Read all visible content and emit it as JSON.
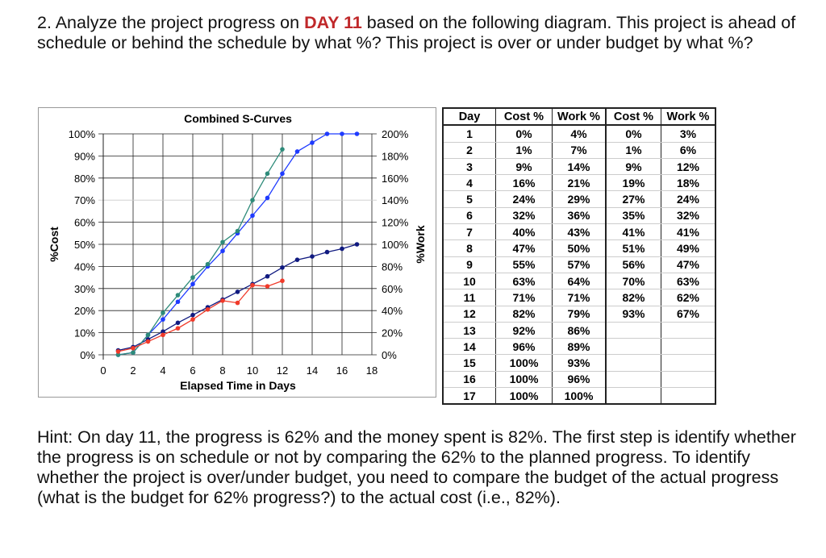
{
  "question": {
    "prefix": "2. Analyze the project progress on ",
    "day": "DAY 11",
    "suffix": " based on the following diagram. This project is ahead of schedule or behind the schedule by what %? This project is over or under budget by what %?"
  },
  "hint": "Hint: On day 11, the progress is 62% and the money spent is 82%. The first step is identify whether the progress is on schedule or not by comparing the 62% to the planned progress. To identify whether the project is over/under budget, you need to compare the budget of the actual progress (what is the budget for 62% progress?) to the actual cost (i.e., 82%).",
  "table": {
    "headers": [
      "Day",
      "Cost %",
      "Work %",
      "Cost %",
      "Work %"
    ],
    "rows": [
      [
        "1",
        "0%",
        "4%",
        "0%",
        "3%"
      ],
      [
        "2",
        "1%",
        "7%",
        "1%",
        "6%"
      ],
      [
        "3",
        "9%",
        "14%",
        "9%",
        "12%"
      ],
      [
        "4",
        "16%",
        "21%",
        "19%",
        "18%"
      ],
      [
        "5",
        "24%",
        "29%",
        "27%",
        "24%"
      ],
      [
        "6",
        "32%",
        "36%",
        "35%",
        "32%"
      ],
      [
        "7",
        "40%",
        "43%",
        "41%",
        "41%"
      ],
      [
        "8",
        "47%",
        "50%",
        "51%",
        "49%"
      ],
      [
        "9",
        "55%",
        "57%",
        "56%",
        "47%"
      ],
      [
        "10",
        "63%",
        "64%",
        "70%",
        "63%"
      ],
      [
        "11",
        "71%",
        "71%",
        "82%",
        "62%"
      ],
      [
        "12",
        "82%",
        "79%",
        "93%",
        "67%"
      ],
      [
        "13",
        "92%",
        "86%",
        "",
        ""
      ],
      [
        "14",
        "96%",
        "89%",
        "",
        ""
      ],
      [
        "15",
        "100%",
        "93%",
        "",
        ""
      ],
      [
        "16",
        "100%",
        "96%",
        "",
        ""
      ],
      [
        "17",
        "100%",
        "100%",
        "",
        ""
      ]
    ]
  },
  "chart_data": {
    "type": "line",
    "title": "Combined S-Curves",
    "xlabel": "Elapsed Time in Days",
    "ylabel": "%Cost",
    "y2label": "%Work",
    "xlim": [
      0,
      18
    ],
    "xticks": [
      "0",
      "2",
      "4",
      "6",
      "8",
      "10",
      "12",
      "14",
      "16",
      "18"
    ],
    "ylim": [
      0,
      100
    ],
    "yticks": [
      "0%",
      "10%",
      "20%",
      "30%",
      "40%",
      "50%",
      "60%",
      "70%",
      "80%",
      "90%",
      "100%"
    ],
    "y2lim": [
      0,
      200
    ],
    "y2ticks": [
      "0%",
      "20%",
      "40%",
      "60%",
      "80%",
      "100%",
      "120%",
      "140%",
      "160%",
      "180%",
      "200%"
    ],
    "grid": true,
    "series": [
      {
        "axis": "left",
        "color": "#1f3bff",
        "x": [
          1,
          2,
          3,
          4,
          5,
          6,
          7,
          8,
          9,
          10,
          11,
          12,
          13,
          14,
          15,
          16,
          17
        ],
        "values": [
          0,
          1,
          9,
          16,
          24,
          32,
          40,
          47,
          55,
          63,
          71,
          82,
          92,
          96,
          100,
          100,
          100
        ]
      },
      {
        "axis": "right",
        "color": "#101a80",
        "x": [
          1,
          2,
          3,
          4,
          5,
          6,
          7,
          8,
          9,
          10,
          11,
          12,
          13,
          14,
          15,
          16,
          17
        ],
        "values": [
          4,
          7,
          14,
          21,
          29,
          36,
          43,
          50,
          57,
          64,
          71,
          79,
          86,
          89,
          93,
          96,
          100
        ]
      },
      {
        "axis": "left",
        "color": "#2e8b7a",
        "x": [
          1,
          2,
          3,
          4,
          5,
          6,
          7,
          8,
          9,
          10,
          11,
          12
        ],
        "values": [
          0,
          1,
          9,
          19,
          27,
          35,
          41,
          51,
          56,
          70,
          82,
          93
        ]
      },
      {
        "axis": "right",
        "color": "#f03a2a",
        "x": [
          1,
          2,
          3,
          4,
          5,
          6,
          7,
          8,
          9,
          10,
          11,
          12
        ],
        "values": [
          3,
          6,
          12,
          18,
          24,
          32,
          41,
          49,
          47,
          63,
          62,
          67
        ]
      }
    ]
  }
}
